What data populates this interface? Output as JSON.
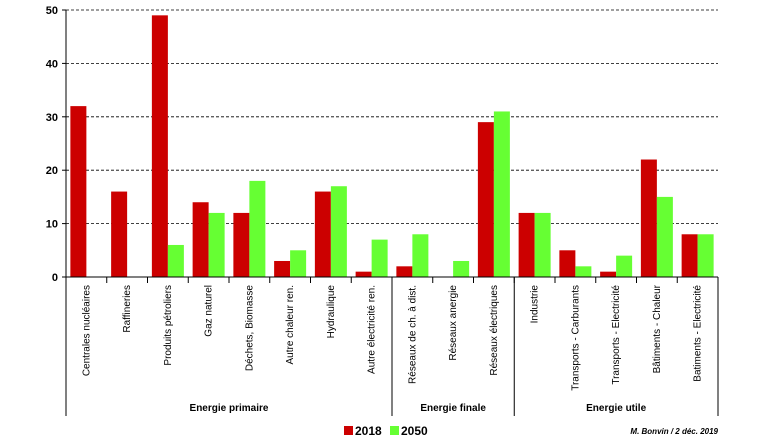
{
  "chart_data": {
    "type": "bar",
    "title": "",
    "xlabel": "",
    "ylabel": "",
    "ylim": [
      0,
      50
    ],
    "yticks": [
      0,
      10,
      20,
      30,
      40,
      50
    ],
    "grid": "horizontal dashed",
    "legend_placement": "bottom-center",
    "categories": [
      "Centrales nucléaires",
      "Raffineries",
      "Produits pétroliers",
      "Gaz naturel",
      "Déchets, Biomasse",
      "Autre chaleur ren.",
      "Hydraulique",
      "Autre électricité ren.",
      "Réseaux de ch. à dist.",
      "Réseaux anergie",
      "Réseaux électriques",
      "Industrie",
      "Transports - Carburants",
      "Transports - Electricité",
      "Bâtiments - Chaleur",
      "Batiments - Electricité"
    ],
    "series": [
      {
        "name": "2018",
        "color": "#cc0000",
        "values": [
          32,
          16,
          49,
          14,
          12,
          3,
          16,
          1,
          2,
          0,
          29,
          12,
          5,
          1,
          22,
          8
        ]
      },
      {
        "name": "2050",
        "color": "#66ff33",
        "values": [
          0,
          0,
          6,
          12,
          18,
          5,
          17,
          7,
          8,
          3,
          31,
          12,
          2,
          4,
          15,
          8
        ]
      }
    ],
    "groups": [
      {
        "label": "Energie primaire",
        "start": 0,
        "end": 7
      },
      {
        "label": "Energie finale",
        "start": 8,
        "end": 10
      },
      {
        "label": "Energie utile",
        "start": 11,
        "end": 15
      }
    ]
  },
  "credit": "M. Bonvin  /  2 déc. 2019"
}
